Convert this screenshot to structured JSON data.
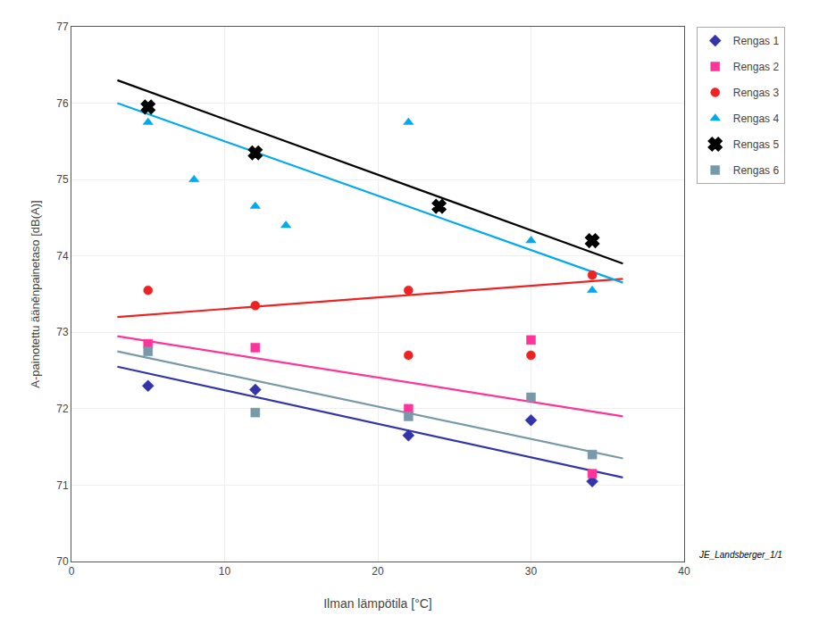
{
  "chart_data": {
    "type": "scatter",
    "xlabel": "Ilman lämpötila [°C]",
    "ylabel": "A-painotettu ääněnpainetaso [dB(A)]",
    "xlim": [
      0,
      40
    ],
    "ylim": [
      70,
      77
    ],
    "xticks": [
      0,
      10,
      20,
      30,
      40
    ],
    "yticks": [
      70,
      71,
      72,
      73,
      74,
      75,
      76,
      77
    ],
    "grid": true,
    "legend": "right",
    "annotations": [
      "JE_Landsberger_1/1"
    ],
    "series": [
      {
        "name": "Rengas 1",
        "color": "#3333aa",
        "marker": "diamond",
        "x": [
          5,
          12,
          22,
          30,
          34
        ],
        "y": [
          72.3,
          72.25,
          71.65,
          71.85,
          71.05
        ],
        "trend_x": [
          3,
          36
        ],
        "trend_y": [
          72.55,
          71.1
        ]
      },
      {
        "name": "Rengas 2",
        "color": "#ff3399",
        "marker": "square",
        "x": [
          5,
          12,
          22,
          30,
          34
        ],
        "y": [
          72.85,
          72.8,
          72.0,
          72.9,
          71.15
        ],
        "trend_x": [
          3,
          36
        ],
        "trend_y": [
          72.95,
          71.9
        ]
      },
      {
        "name": "Rengas 3",
        "color": "#ee2222",
        "marker": "circle",
        "x": [
          5,
          12,
          22,
          22,
          30,
          34
        ],
        "y": [
          73.55,
          73.35,
          73.55,
          72.7,
          72.7,
          73.75
        ],
        "trend_x": [
          3,
          36
        ],
        "trend_y": [
          73.2,
          73.7
        ]
      },
      {
        "name": "Rengas 4",
        "color": "#00aaee",
        "marker": "triangle-up",
        "x": [
          5,
          8,
          12,
          14,
          22,
          30,
          34
        ],
        "y": [
          75.75,
          75.0,
          74.65,
          74.4,
          75.75,
          74.2,
          73.55
        ],
        "trend_x": [
          3,
          36
        ],
        "trend_y": [
          76.0,
          73.65
        ]
      },
      {
        "name": "Rengas 5",
        "color": "#000000",
        "marker": "x",
        "x": [
          5,
          12,
          24,
          34
        ],
        "y": [
          75.95,
          75.35,
          74.65,
          74.2
        ],
        "trend_x": [
          3,
          36
        ],
        "trend_y": [
          76.3,
          73.9
        ]
      },
      {
        "name": "Rengas 6",
        "color": "#7799aa",
        "marker": "square",
        "x": [
          5,
          12,
          22,
          30,
          34
        ],
        "y": [
          72.75,
          71.95,
          71.9,
          72.15,
          71.4
        ],
        "trend_x": [
          3,
          36
        ],
        "trend_y": [
          72.75,
          71.35
        ]
      }
    ]
  }
}
